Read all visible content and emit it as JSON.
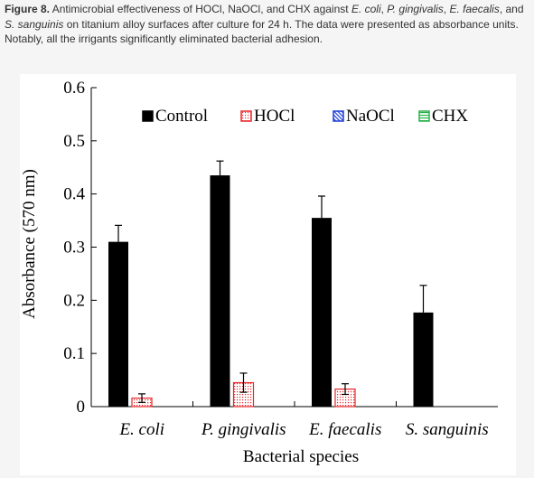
{
  "caption": {
    "label": "Figure 8.",
    "t1": " Antimicrobial effectiveness of HOCl, NaOCl, and CHX against ",
    "i1": "E. coli",
    "t2": ", ",
    "i2": "P. gingivalis",
    "t3": ", ",
    "i3": "E. faecalis",
    "t4": ", and ",
    "i4": "S. sanguinis",
    "t5": " on titanium alloy surfaces after culture for 24 h. The data were presented as absorbance units. Notably, all the irrigants significantly eliminated bacterial adhesion."
  },
  "colors": {
    "control": "#000000",
    "hocl": "#e8262b",
    "naocl": "#1f3fd8",
    "chx": "#2bb24c"
  },
  "chart_data": {
    "type": "bar",
    "categories": [
      "E. coli",
      "P. gingivalis",
      "E. faecalis",
      "S. sanguinis"
    ],
    "series": [
      {
        "name": "Control",
        "values": [
          0.31,
          0.435,
          0.355,
          0.177
        ],
        "errors": [
          0.031,
          0.027,
          0.041,
          0.051
        ]
      },
      {
        "name": "HOCl",
        "values": [
          0.016,
          0.045,
          0.033,
          0
        ],
        "errors": [
          0.008,
          0.018,
          0.01,
          0
        ]
      },
      {
        "name": "NaOCl",
        "values": [
          0,
          0,
          0,
          0
        ],
        "errors": [
          0,
          0,
          0,
          0
        ]
      },
      {
        "name": "CHX",
        "values": [
          0,
          0,
          0,
          0
        ],
        "errors": [
          0,
          0,
          0,
          0
        ]
      }
    ],
    "ylim": [
      0,
      0.6
    ],
    "yticks": [
      "0",
      "0.1",
      "0.2",
      "0.3",
      "0.4",
      "0.5",
      "0.6"
    ],
    "xlabel": "Bacterial species",
    "ylabel": "Absorbance (570 nm)",
    "legend_position": "top-right",
    "grid": false
  }
}
